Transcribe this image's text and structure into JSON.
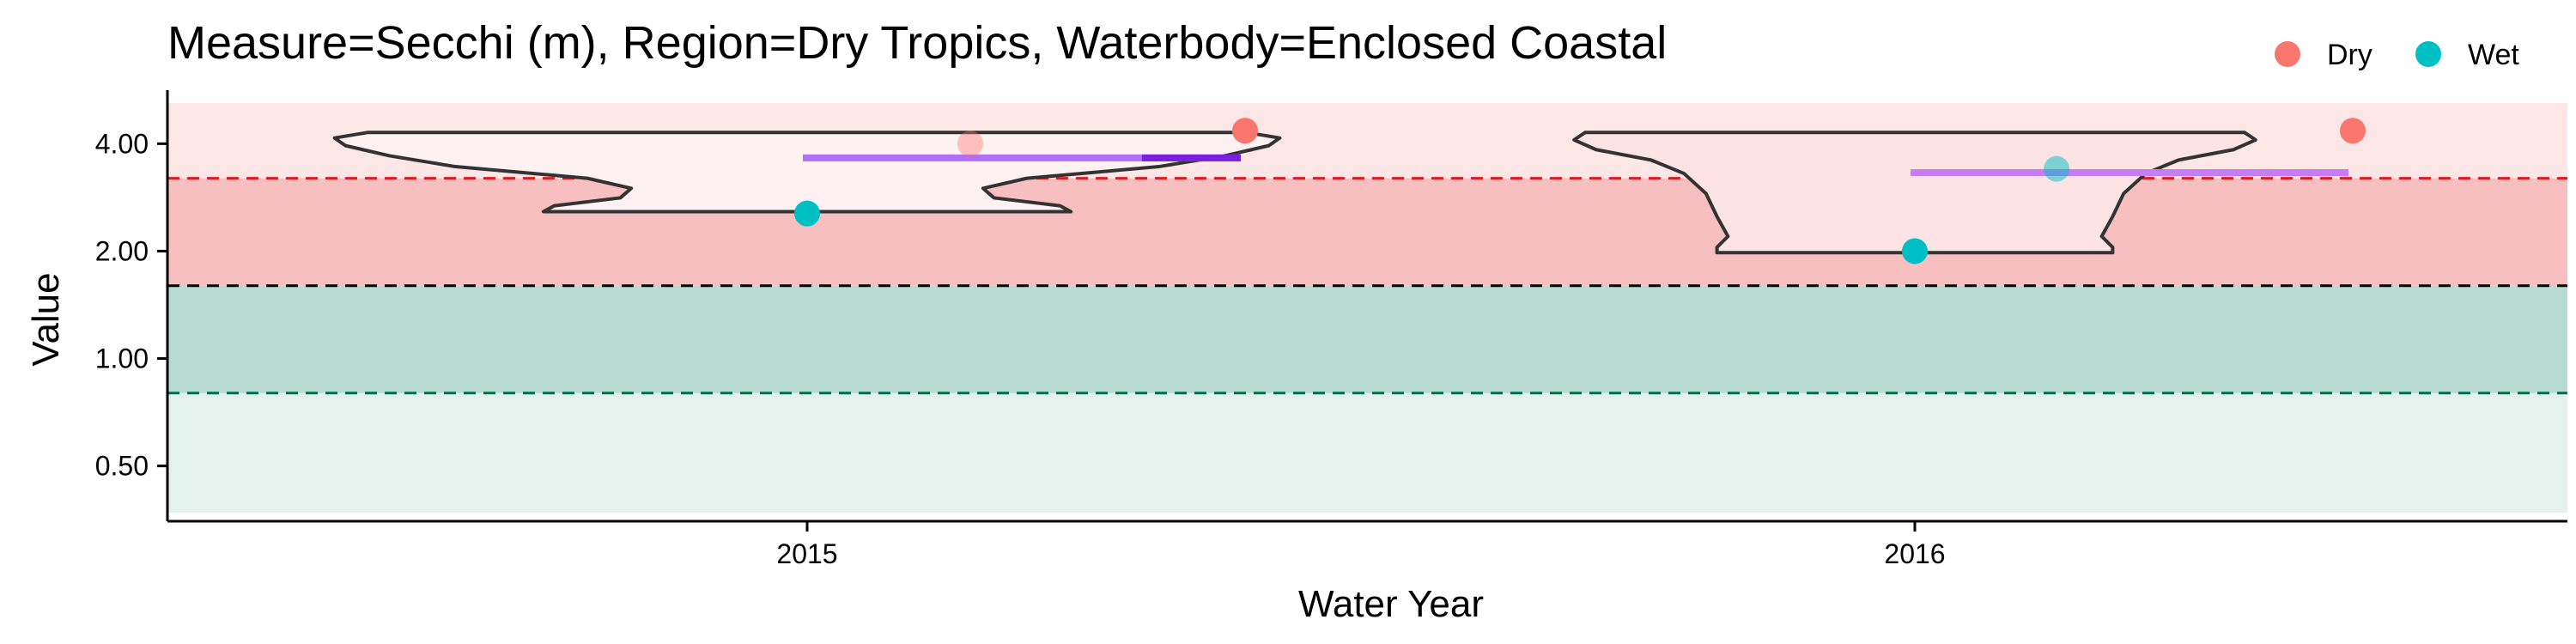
{
  "chart_data": {
    "type": "scatter",
    "title": "Measure=Secchi (m), Region=Dry Tropics, Waterbody=Enclosed Coastal",
    "xlabel": "Water Year",
    "ylabel": "Value",
    "scale": "log2",
    "ylim": [
      0.35,
      5.2
    ],
    "categories": [
      "2015",
      "2016"
    ],
    "y_ticks": [
      {
        "value": 0.5,
        "label": "0.50"
      },
      {
        "value": 1,
        "label": "1.00"
      },
      {
        "value": 2,
        "label": "2.00"
      },
      {
        "value": 4,
        "label": "4.00"
      }
    ],
    "bands": [
      {
        "from": 0.37,
        "to": 0.8,
        "color": "#e5f1ec"
      },
      {
        "from": 0.8,
        "to": 1.6,
        "color": "#b8dbd1"
      },
      {
        "from": 1.6,
        "to": 3.2,
        "color": "#f8bfc0"
      },
      {
        "from": 3.2,
        "to": 5.2,
        "color": "#fce6e6"
      }
    ],
    "reference_lines": [
      {
        "value": 3.2,
        "color": "#e31a1c",
        "style": "dashed"
      },
      {
        "value": 1.6,
        "color": "#000000",
        "style": "dashed"
      },
      {
        "value": 0.8,
        "color": "#006d4f",
        "style": "dashed"
      }
    ],
    "series": [
      {
        "name": "Dry",
        "color": "#f8766d",
        "points": [
          {
            "x": "2015",
            "y": 4.0,
            "alpha": 0.4
          },
          {
            "x": "2015",
            "y": 4.35,
            "alpha": 1.0
          },
          {
            "x": "2016",
            "y": 4.35,
            "alpha": 1.0
          }
        ]
      },
      {
        "name": "Wet",
        "color": "#00bfc4",
        "points": [
          {
            "x": "2015",
            "y": 2.55,
            "alpha": 1.0
          },
          {
            "x": "2016",
            "y": 3.4,
            "alpha": 0.5
          },
          {
            "x": "2016",
            "y": 2.0,
            "alpha": 1.0
          }
        ]
      }
    ],
    "summary_lines": [
      {
        "x": "2015",
        "y": 3.65,
        "color": "#b06ff5",
        "dark_end_color": "#7a1fe0"
      },
      {
        "x": "2016",
        "y": 3.32,
        "color": "#c67cf2",
        "dark_end_color": null
      }
    ],
    "violins": [
      {
        "x": "2015",
        "fill": "#fdf1f1",
        "profile": [
          {
            "y": 2.58,
            "half_width": 0.24
          },
          {
            "y": 2.68,
            "half_width": 0.23
          },
          {
            "y": 2.82,
            "half_width": 0.17
          },
          {
            "y": 3.0,
            "half_width": 0.16
          },
          {
            "y": 3.2,
            "half_width": 0.2
          },
          {
            "y": 3.45,
            "half_width": 0.32
          },
          {
            "y": 3.7,
            "half_width": 0.38
          },
          {
            "y": 3.95,
            "half_width": 0.42
          },
          {
            "y": 4.15,
            "half_width": 0.43
          },
          {
            "y": 4.3,
            "half_width": 0.4
          }
        ]
      },
      {
        "x": "2016",
        "fill": "#fde3e3",
        "profile": [
          {
            "y": 1.98,
            "half_width": 0.18
          },
          {
            "y": 2.05,
            "half_width": 0.18
          },
          {
            "y": 2.2,
            "half_width": 0.17
          },
          {
            "y": 2.5,
            "half_width": 0.18
          },
          {
            "y": 2.9,
            "half_width": 0.19
          },
          {
            "y": 3.3,
            "half_width": 0.21
          },
          {
            "y": 3.6,
            "half_width": 0.24
          },
          {
            "y": 3.85,
            "half_width": 0.29
          },
          {
            "y": 4.1,
            "half_width": 0.31
          },
          {
            "y": 4.3,
            "half_width": 0.3
          }
        ]
      }
    ],
    "legend": {
      "position": "top-right",
      "entries": [
        {
          "label": "Dry",
          "color": "#f8766d"
        },
        {
          "label": "Wet",
          "color": "#00bfc4"
        }
      ]
    },
    "grid": false
  }
}
